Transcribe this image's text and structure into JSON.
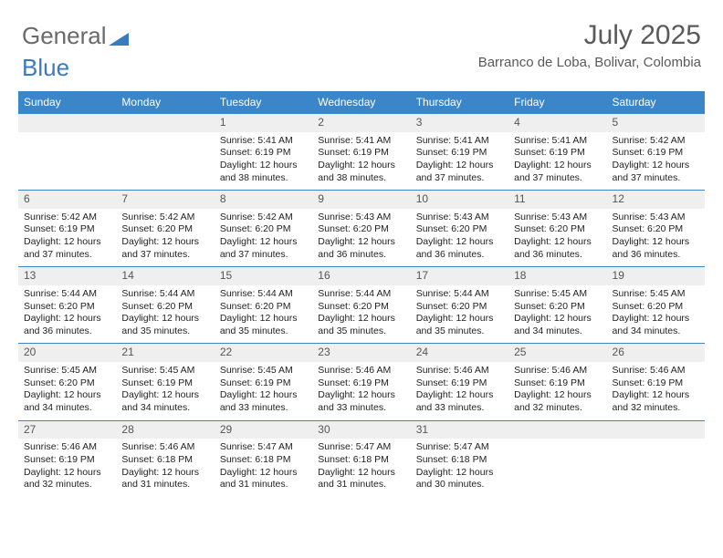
{
  "logo": {
    "part1": "General",
    "part2": "Blue"
  },
  "header": {
    "month": "July 2025",
    "location": "Barranco de Loba, Bolivar, Colombia"
  },
  "colors": {
    "header_bar": "#3a86c8",
    "week_border": "#3a86c8",
    "daynum_bg": "#efefef",
    "logo_gray": "#6a6a6a",
    "logo_blue": "#3a7ac0",
    "text": "#222222",
    "header_text": "#5a5a5a"
  },
  "day_names": [
    "Sunday",
    "Monday",
    "Tuesday",
    "Wednesday",
    "Thursday",
    "Friday",
    "Saturday"
  ],
  "weeks": [
    [
      {
        "empty": true
      },
      {
        "empty": true
      },
      {
        "n": "1",
        "sr": "5:41 AM",
        "ss": "6:19 PM",
        "dl": "12 hours and 38 minutes."
      },
      {
        "n": "2",
        "sr": "5:41 AM",
        "ss": "6:19 PM",
        "dl": "12 hours and 38 minutes."
      },
      {
        "n": "3",
        "sr": "5:41 AM",
        "ss": "6:19 PM",
        "dl": "12 hours and 37 minutes."
      },
      {
        "n": "4",
        "sr": "5:41 AM",
        "ss": "6:19 PM",
        "dl": "12 hours and 37 minutes."
      },
      {
        "n": "5",
        "sr": "5:42 AM",
        "ss": "6:19 PM",
        "dl": "12 hours and 37 minutes."
      }
    ],
    [
      {
        "n": "6",
        "sr": "5:42 AM",
        "ss": "6:19 PM",
        "dl": "12 hours and 37 minutes."
      },
      {
        "n": "7",
        "sr": "5:42 AM",
        "ss": "6:20 PM",
        "dl": "12 hours and 37 minutes."
      },
      {
        "n": "8",
        "sr": "5:42 AM",
        "ss": "6:20 PM",
        "dl": "12 hours and 37 minutes."
      },
      {
        "n": "9",
        "sr": "5:43 AM",
        "ss": "6:20 PM",
        "dl": "12 hours and 36 minutes."
      },
      {
        "n": "10",
        "sr": "5:43 AM",
        "ss": "6:20 PM",
        "dl": "12 hours and 36 minutes."
      },
      {
        "n": "11",
        "sr": "5:43 AM",
        "ss": "6:20 PM",
        "dl": "12 hours and 36 minutes."
      },
      {
        "n": "12",
        "sr": "5:43 AM",
        "ss": "6:20 PM",
        "dl": "12 hours and 36 minutes."
      }
    ],
    [
      {
        "n": "13",
        "sr": "5:44 AM",
        "ss": "6:20 PM",
        "dl": "12 hours and 36 minutes."
      },
      {
        "n": "14",
        "sr": "5:44 AM",
        "ss": "6:20 PM",
        "dl": "12 hours and 35 minutes."
      },
      {
        "n": "15",
        "sr": "5:44 AM",
        "ss": "6:20 PM",
        "dl": "12 hours and 35 minutes."
      },
      {
        "n": "16",
        "sr": "5:44 AM",
        "ss": "6:20 PM",
        "dl": "12 hours and 35 minutes."
      },
      {
        "n": "17",
        "sr": "5:44 AM",
        "ss": "6:20 PM",
        "dl": "12 hours and 35 minutes."
      },
      {
        "n": "18",
        "sr": "5:45 AM",
        "ss": "6:20 PM",
        "dl": "12 hours and 34 minutes."
      },
      {
        "n": "19",
        "sr": "5:45 AM",
        "ss": "6:20 PM",
        "dl": "12 hours and 34 minutes."
      }
    ],
    [
      {
        "n": "20",
        "sr": "5:45 AM",
        "ss": "6:20 PM",
        "dl": "12 hours and 34 minutes."
      },
      {
        "n": "21",
        "sr": "5:45 AM",
        "ss": "6:19 PM",
        "dl": "12 hours and 34 minutes."
      },
      {
        "n": "22",
        "sr": "5:45 AM",
        "ss": "6:19 PM",
        "dl": "12 hours and 33 minutes."
      },
      {
        "n": "23",
        "sr": "5:46 AM",
        "ss": "6:19 PM",
        "dl": "12 hours and 33 minutes."
      },
      {
        "n": "24",
        "sr": "5:46 AM",
        "ss": "6:19 PM",
        "dl": "12 hours and 33 minutes."
      },
      {
        "n": "25",
        "sr": "5:46 AM",
        "ss": "6:19 PM",
        "dl": "12 hours and 32 minutes."
      },
      {
        "n": "26",
        "sr": "5:46 AM",
        "ss": "6:19 PM",
        "dl": "12 hours and 32 minutes."
      }
    ],
    [
      {
        "n": "27",
        "sr": "5:46 AM",
        "ss": "6:19 PM",
        "dl": "12 hours and 32 minutes."
      },
      {
        "n": "28",
        "sr": "5:46 AM",
        "ss": "6:18 PM",
        "dl": "12 hours and 31 minutes."
      },
      {
        "n": "29",
        "sr": "5:47 AM",
        "ss": "6:18 PM",
        "dl": "12 hours and 31 minutes."
      },
      {
        "n": "30",
        "sr": "5:47 AM",
        "ss": "6:18 PM",
        "dl": "12 hours and 31 minutes."
      },
      {
        "n": "31",
        "sr": "5:47 AM",
        "ss": "6:18 PM",
        "dl": "12 hours and 30 minutes."
      },
      {
        "empty": true
      },
      {
        "empty": true
      }
    ]
  ],
  "labels": {
    "sunrise": "Sunrise:",
    "sunset": "Sunset:",
    "daylight": "Daylight:"
  }
}
